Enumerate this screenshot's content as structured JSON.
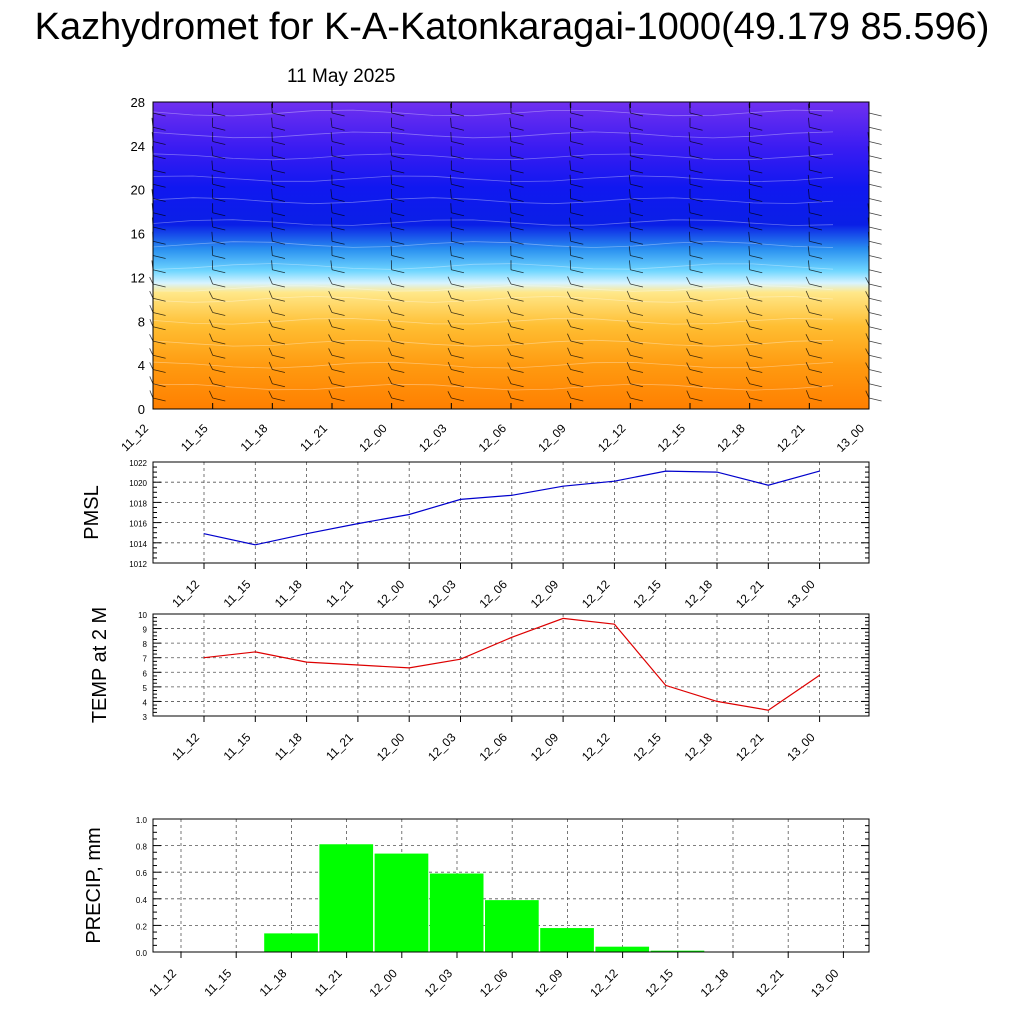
{
  "title": "Kazhydromet for K-A-Katonkaragai-1000(49.179 85.596)",
  "subtitle": "11 May 2025",
  "chart_data": [
    {
      "type": "heatmap",
      "ylim": [
        0,
        28
      ],
      "yticks": [
        0,
        4,
        8,
        12,
        16,
        20,
        24,
        28
      ],
      "categories": [
        "11_12",
        "11_15",
        "11_18",
        "11_21",
        "12_00",
        "12_03",
        "12_06",
        "12_09",
        "12_12",
        "12_15",
        "12_18",
        "12_21",
        "13_00"
      ],
      "xlabel": "",
      "ylabel": "",
      "colors": {
        "low": "#ff8c00",
        "mid_low": "#ffd24a",
        "mid": "#fff6b0",
        "cyan": "#36c8f5",
        "blue": "#0a1fe6",
        "high": "#6a2cf0"
      },
      "wind_barbs": true
    },
    {
      "type": "line",
      "ylabel": "PMSL",
      "ylim": [
        1012,
        1022
      ],
      "yticks": [
        1012,
        1014,
        1016,
        1018,
        1020,
        1022
      ],
      "categories": [
        "11_12",
        "11_15",
        "11_18",
        "11_21",
        "12_00",
        "12_03",
        "12_06",
        "12_09",
        "12_12",
        "12_15",
        "12_18",
        "12_21",
        "13_00"
      ],
      "values": [
        1014.9,
        1013.8,
        1014.9,
        1015.9,
        1016.8,
        1018.3,
        1018.7,
        1019.6,
        1020.1,
        1021.1,
        1021.0,
        1019.7,
        1021.1
      ],
      "color": "#0000cc",
      "grid": true
    },
    {
      "type": "line",
      "ylabel": "TEMP at 2 M",
      "ylim": [
        3,
        10
      ],
      "yticks": [
        3,
        4,
        5,
        6,
        7,
        8,
        9,
        10
      ],
      "categories": [
        "11_12",
        "11_15",
        "11_18",
        "11_21",
        "12_00",
        "12_03",
        "12_06",
        "12_09",
        "12_12",
        "12_15",
        "12_18",
        "12_21",
        "13_00"
      ],
      "values": [
        7.0,
        7.4,
        6.7,
        6.5,
        6.3,
        6.9,
        8.4,
        9.7,
        9.3,
        5.1,
        4.0,
        3.4,
        5.8
      ],
      "color": "#dd0000",
      "grid": true
    },
    {
      "type": "bar",
      "ylabel": "PRECIP, mm",
      "ylim": [
        0,
        1.0
      ],
      "yticks": [
        "0.0",
        "0.2",
        "0.4",
        "0.6",
        "0.8",
        "1.0"
      ],
      "categories": [
        "11_12",
        "11_15",
        "11_18",
        "11_21",
        "12_00",
        "12_03",
        "12_06",
        "12_09",
        "12_12",
        "12_15",
        "12_18",
        "12_21",
        "13_00"
      ],
      "values": [
        0,
        0,
        0.14,
        0.81,
        0.74,
        0.59,
        0.39,
        0.18,
        0.04,
        0.01,
        0,
        0,
        0
      ],
      "color": "#00ff00",
      "grid": true
    }
  ]
}
